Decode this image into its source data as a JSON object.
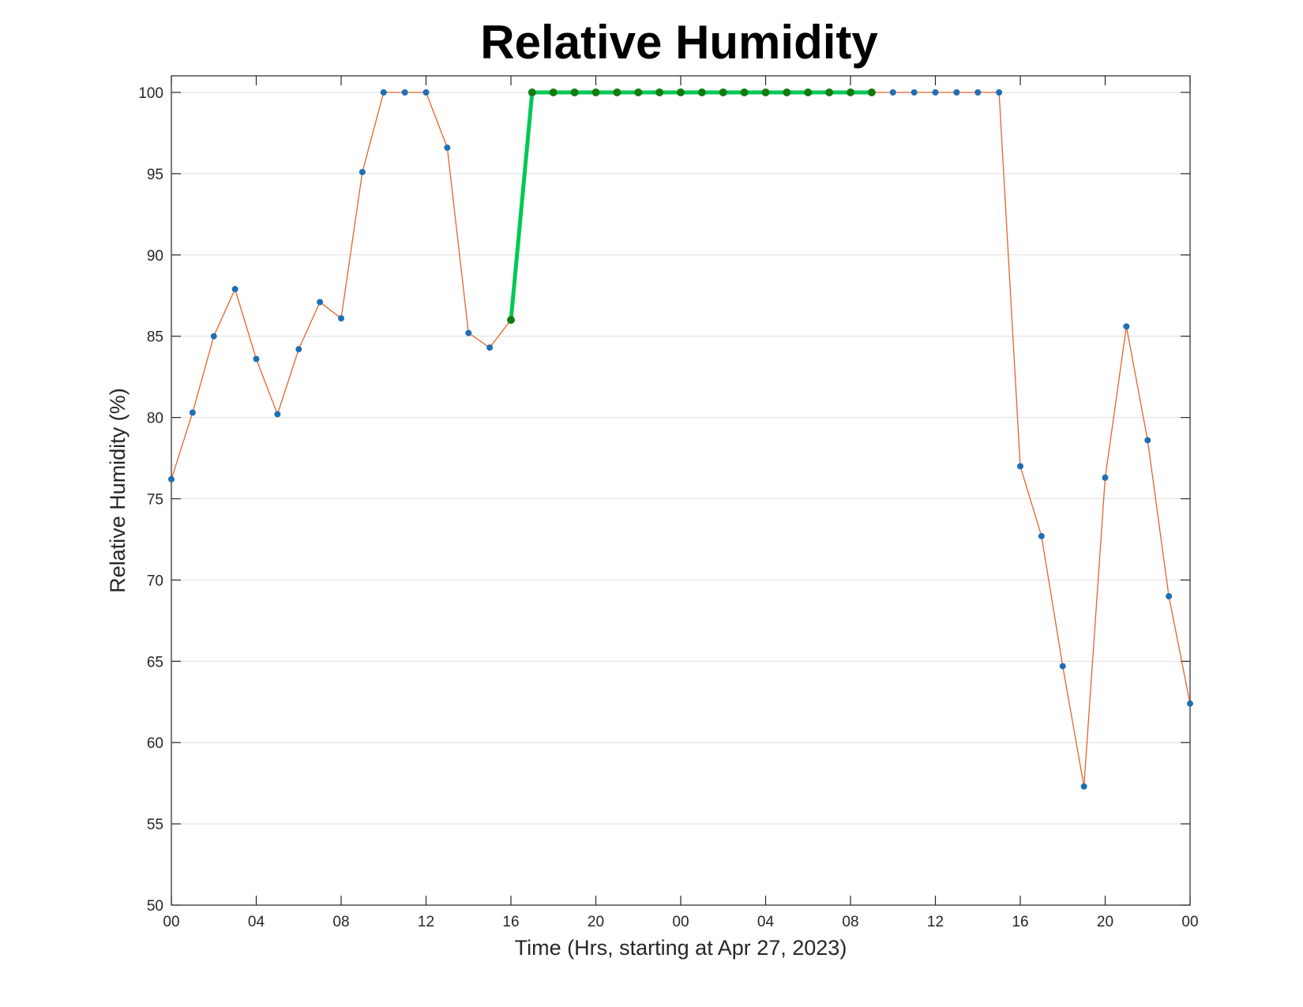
{
  "chart_data": {
    "type": "line",
    "title": "Relative Humidity",
    "xlabel": "Time (Hrs, starting at Apr 27, 2023)",
    "ylabel": "Relative Humidity (%)",
    "ylim": [
      50,
      100
    ],
    "xlim": [
      0,
      48
    ],
    "y_ticks": [
      50,
      55,
      60,
      65,
      70,
      75,
      80,
      85,
      90,
      95,
      100
    ],
    "x_ticks": [
      {
        "x": 0,
        "label": "00"
      },
      {
        "x": 4,
        "label": "04"
      },
      {
        "x": 8,
        "label": "08"
      },
      {
        "x": 12,
        "label": "12"
      },
      {
        "x": 16,
        "label": "16"
      },
      {
        "x": 20,
        "label": "20"
      },
      {
        "x": 24,
        "label": "00"
      },
      {
        "x": 28,
        "label": "04"
      },
      {
        "x": 32,
        "label": "08"
      },
      {
        "x": 36,
        "label": "12"
      },
      {
        "x": 40,
        "label": "16"
      },
      {
        "x": 44,
        "label": "20"
      },
      {
        "x": 48,
        "label": "00"
      }
    ],
    "grid": "horizontal",
    "series": [
      {
        "color": "#e8622c",
        "marker_color": "#1f6fb5",
        "x": [
          0,
          1,
          2,
          3,
          4,
          5,
          6,
          7,
          8,
          9,
          10,
          11,
          12,
          13,
          14,
          15,
          16,
          17,
          18,
          19,
          20,
          21,
          22,
          23,
          24,
          25,
          26,
          27,
          28,
          29,
          30,
          31,
          32,
          33,
          34,
          35,
          36,
          37,
          38,
          39,
          40,
          41,
          42,
          43,
          44,
          45,
          46,
          47,
          48
        ],
        "values": [
          76.2,
          80.3,
          85.0,
          87.9,
          83.6,
          80.2,
          84.2,
          87.1,
          86.1,
          95.1,
          100,
          100,
          100,
          96.6,
          85.2,
          84.3,
          86.0,
          100,
          100,
          100,
          100,
          100,
          100,
          100,
          100,
          100,
          100,
          100,
          100,
          100,
          100,
          100,
          100,
          100,
          100,
          100,
          100,
          100,
          100,
          100,
          77.0,
          72.7,
          64.7,
          57.3,
          76.3,
          85.6,
          78.6,
          69.0,
          62.4
        ]
      },
      {
        "color": "#00c853",
        "marker_color": "#127a12",
        "x": [
          16,
          17,
          18,
          19,
          20,
          21,
          22,
          23,
          24,
          25,
          26,
          27,
          28,
          29,
          30,
          31,
          32,
          33
        ],
        "values": [
          86.0,
          100,
          100,
          100,
          100,
          100,
          100,
          100,
          100,
          100,
          100,
          100,
          100,
          100,
          100,
          100,
          100,
          100
        ]
      }
    ]
  }
}
